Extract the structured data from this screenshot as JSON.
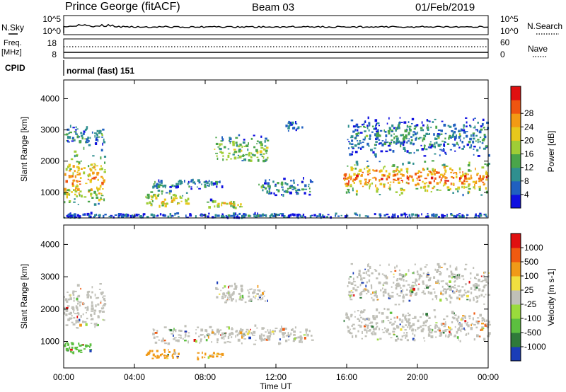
{
  "header": {
    "station": "Prince George (fitACF)",
    "beam": "Beam 03",
    "date": "01/Feb/2019"
  },
  "top_panels": {
    "nsky_label": "N.Sky",
    "nsky_ticks": [
      "10^5",
      "10^0"
    ],
    "nsearch_label": "N.Search",
    "nsearch_ticks": [
      "10^5",
      "10^0"
    ],
    "freq_label": "Freq.",
    "freq_unit": "[MHz]",
    "freq_ticks": [
      "18",
      "8"
    ],
    "nave_label": "Nave",
    "nave_ticks": [
      "60",
      "0"
    ],
    "cpid_label": "CPID",
    "cpid_text": "normal (fast) 151"
  },
  "chart_data": [
    {
      "type": "heatmap",
      "name": "power-panel",
      "ylabel": "Slant Range [km]",
      "ylim": [
        180,
        4600
      ],
      "yticks": [
        "1000",
        "2000",
        "3000",
        "4000"
      ],
      "ytick_values": [
        1000,
        2000,
        3000,
        4000
      ],
      "x_range_hours": [
        0,
        24
      ],
      "colorbar_label": "Power [dB]",
      "colorbar_ticks": [
        "4",
        "8",
        "12",
        "16",
        "20",
        "24",
        "28"
      ],
      "colorbar_colors": [
        "#1010e0",
        "#2060c0",
        "#2f8f8f",
        "#4aa54a",
        "#9fcd36",
        "#e8c81c",
        "#f39a14",
        "#ef5510",
        "#e01010"
      ],
      "echo_regions": [
        {
          "t0": 0.0,
          "t1": 2.3,
          "r0": 600,
          "r1": 2700,
          "center": 1400,
          "level": 0.75
        },
        {
          "t0": 0.0,
          "t1": 2.3,
          "r0": 2500,
          "r1": 3300,
          "center": 2800,
          "level": 0.35
        },
        {
          "t0": 4.6,
          "t1": 7.0,
          "r0": 550,
          "r1": 1500,
          "center": 700,
          "level": 0.6
        },
        {
          "t0": 5.0,
          "t1": 9.0,
          "r0": 1100,
          "r1": 1450,
          "center": 1250,
          "level": 0.3
        },
        {
          "t0": 8.0,
          "t1": 10.0,
          "r0": 500,
          "r1": 800,
          "center": 620,
          "level": 0.7
        },
        {
          "t0": 8.5,
          "t1": 11.5,
          "r0": 2000,
          "r1": 3200,
          "center": 2300,
          "level": 0.5
        },
        {
          "t0": 12.5,
          "t1": 13.5,
          "r0": 2900,
          "r1": 3300,
          "center": 3100,
          "level": 0.3
        },
        {
          "t0": 11.0,
          "t1": 14.0,
          "r0": 900,
          "r1": 1600,
          "center": 1150,
          "level": 0.3
        },
        {
          "t0": 15.8,
          "t1": 24.0,
          "r0": 900,
          "r1": 2100,
          "center": 1450,
          "level": 0.85
        },
        {
          "t0": 16.0,
          "t1": 24.0,
          "r0": 2000,
          "r1": 3400,
          "center": 2800,
          "level": 0.3
        },
        {
          "t0": 0.0,
          "t1": 24.0,
          "r0": 180,
          "r1": 350,
          "center": 250,
          "level": 0.2
        }
      ]
    },
    {
      "type": "heatmap",
      "name": "velocity-panel",
      "ylabel": "Slant Range [km]",
      "xlabel": "Time UT",
      "ylim": [
        180,
        4600
      ],
      "yticks": [
        "1000",
        "2000",
        "3000",
        "4000"
      ],
      "ytick_values": [
        1000,
        2000,
        3000,
        4000
      ],
      "xticks": [
        "00:00",
        "04:00",
        "08:00",
        "12:00",
        "16:00",
        "20:00",
        "00:00"
      ],
      "xtick_values": [
        0,
        4,
        8,
        12,
        16,
        20,
        24
      ],
      "x_range_hours": [
        0,
        24
      ],
      "colorbar_label": "Velocity [m s-1]",
      "colorbar_ticks": [
        "1000",
        "500",
        "100",
        "25",
        "-25",
        "-100",
        "-500",
        "-1000"
      ],
      "colorbar_colors": [
        "#1a3db8",
        "#2f7a3a",
        "#5cbf40",
        "#9adb3c",
        "#c0c0b8",
        "#f0e040",
        "#f09a18",
        "#ef5a10",
        "#e01010"
      ],
      "echo_regions": [
        {
          "t0": 0.0,
          "t1": 2.3,
          "r0": 1400,
          "r1": 3300,
          "center": 2000,
          "color": "#c0c0b8"
        },
        {
          "t0": 0.0,
          "t1": 1.5,
          "r0": 600,
          "r1": 1100,
          "center": 800,
          "color": "#5cbf40"
        },
        {
          "t0": 4.6,
          "t1": 6.5,
          "r0": 450,
          "r1": 800,
          "center": 600,
          "color": "#f09a18"
        },
        {
          "t0": 7.5,
          "t1": 9.0,
          "r0": 450,
          "r1": 700,
          "center": 550,
          "color": "#f09a18"
        },
        {
          "t0": 8.5,
          "t1": 11.5,
          "r0": 2200,
          "r1": 3200,
          "center": 2400,
          "color": "#c0c0b8"
        },
        {
          "t0": 5.0,
          "t1": 14.0,
          "r0": 900,
          "r1": 1500,
          "center": 1200,
          "color": "#c0c0b8"
        },
        {
          "t0": 15.8,
          "t1": 24.0,
          "r0": 1000,
          "r1": 2100,
          "center": 1500,
          "color": "#c0c0b8"
        },
        {
          "t0": 16.0,
          "t1": 24.0,
          "r0": 2000,
          "r1": 3400,
          "center": 2800,
          "color": "#c0c0b8"
        }
      ]
    }
  ]
}
